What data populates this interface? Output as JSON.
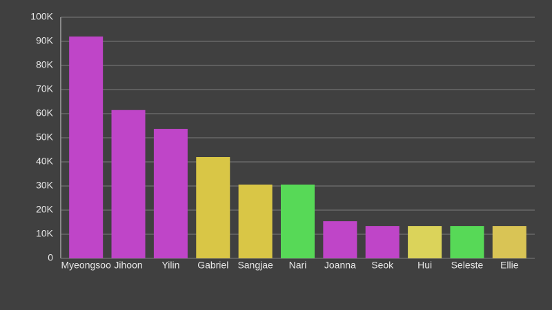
{
  "chart_data": {
    "type": "bar",
    "categories": [
      "Myeongsoo",
      "Jihoon",
      "Yilin",
      "Gabriel",
      "Sangjae",
      "Nari",
      "Joanna",
      "Seok",
      "Hui",
      "Seleste",
      "Ellie"
    ],
    "values": [
      92000,
      61500,
      53700,
      42000,
      30600,
      30600,
      15400,
      13400,
      13400,
      13400,
      13400
    ],
    "colors": [
      "#bf45c8",
      "#bf45c8",
      "#bf45c8",
      "#d9c646",
      "#d9c646",
      "#57d957",
      "#bf45c8",
      "#bf45c8",
      "#dbd35a",
      "#57d957",
      "#d9c455"
    ],
    "ylim": [
      0,
      100000
    ],
    "yticks": [
      0,
      {
        "value": 10000,
        "label": "10K"
      },
      {
        "value": 20000,
        "label": "20K"
      },
      {
        "value": 30000,
        "label": "30K"
      },
      {
        "value": 40000,
        "label": "40K"
      },
      {
        "value": 50000,
        "label": "50K"
      },
      {
        "value": 60000,
        "label": "60K"
      },
      {
        "value": 70000,
        "label": "70K"
      },
      {
        "value": 80000,
        "label": "80K"
      },
      {
        "value": 90000,
        "label": "90K"
      },
      {
        "value": 100000,
        "label": "100K"
      }
    ],
    "grid": true
  }
}
